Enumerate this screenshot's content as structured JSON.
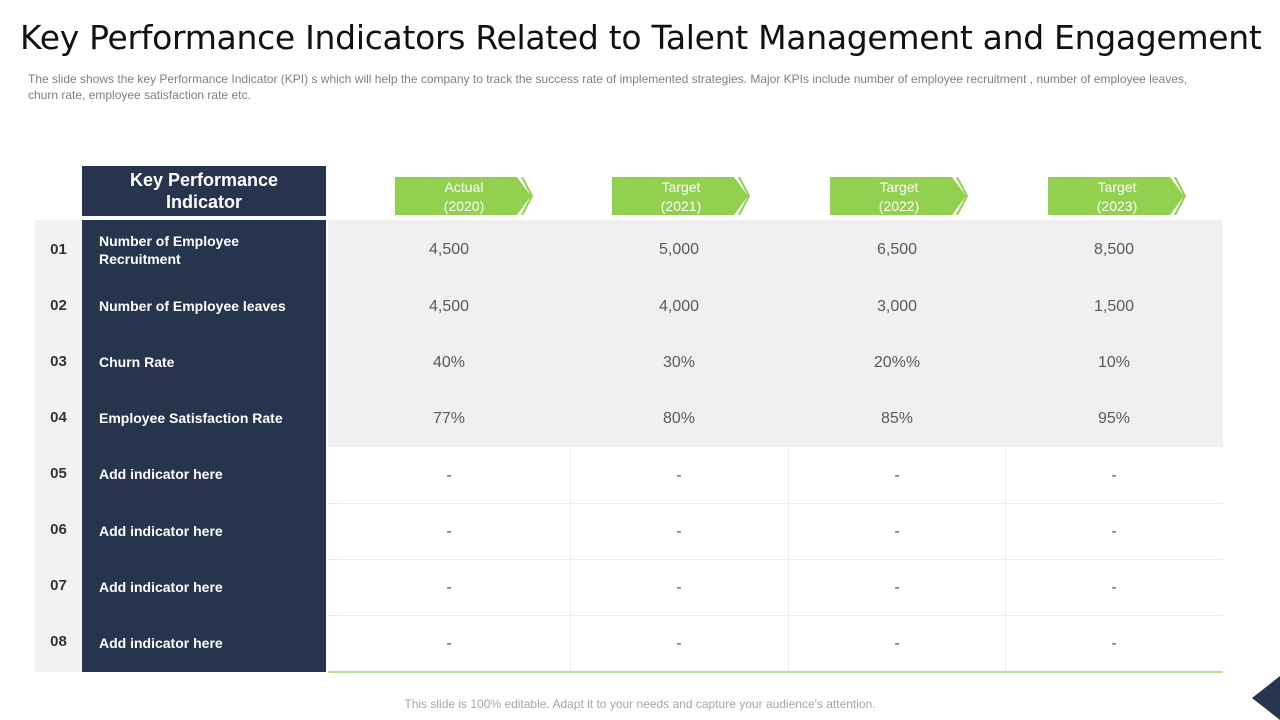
{
  "title": "Key Performance Indicators Related to Talent Management and Engagement",
  "subtitle": "The slide shows the key Performance Indicator (KPI) s which will help the company to track the success rate of implemented strategies. Major KPIs include number of employee recruitment , number of employee leaves, churn rate, employee satisfaction rate etc.",
  "footer": "This slide is 100% editable. Adapt it to your needs and capture your audience's attention.",
  "colors": {
    "navy": "#26354d",
    "green": "#92d050",
    "gray_bg": "#f0f0f0"
  },
  "table": {
    "kpi_header": "Key Performance Indicator",
    "columns": [
      {
        "label": "Actual",
        "year": "(2020)"
      },
      {
        "label": "Target",
        "year": "(2021)"
      },
      {
        "label": "Target",
        "year": "(2022)"
      },
      {
        "label": "Target",
        "year": "(2023)"
      }
    ],
    "rows": [
      {
        "num": "01",
        "label": "Number of Employee Recruitment",
        "values": [
          "4,500",
          "5,000",
          "6,500",
          "8,500"
        ]
      },
      {
        "num": "02",
        "label": "Number of Employee leaves",
        "values": [
          "4,500",
          "4,000",
          "3,000",
          "1,500"
        ]
      },
      {
        "num": "03",
        "label": "Churn Rate",
        "values": [
          "40%",
          "30%",
          "20%%",
          "10%"
        ]
      },
      {
        "num": "04",
        "label": "Employee Satisfaction Rate",
        "values": [
          "77%",
          "80%",
          "85%",
          "95%"
        ]
      },
      {
        "num": "05",
        "label": "Add indicator here",
        "values": [
          "-",
          "-",
          "-",
          "-"
        ]
      },
      {
        "num": "06",
        "label": "Add indicator here",
        "values": [
          "-",
          "-",
          "-",
          "-"
        ]
      },
      {
        "num": "07",
        "label": "Add indicator here",
        "values": [
          "-",
          "-",
          "-",
          "-"
        ]
      },
      {
        "num": "08",
        "label": "Add indicator here",
        "values": [
          "-",
          "-",
          "-",
          "-"
        ]
      }
    ]
  }
}
